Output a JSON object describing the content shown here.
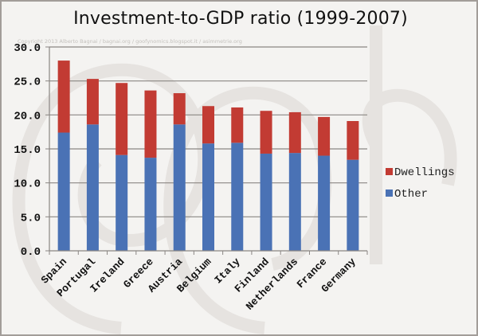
{
  "watermark": "Copyright 2013 Alberto Bagnai / bagnai.org / goofynomics.blogspot.it / asimmetrie.org",
  "colors": {
    "dwellings": "#c23b33",
    "other": "#4a72b5",
    "grid": "#8a8683",
    "axis": "#8a8683"
  },
  "chart_data": {
    "type": "bar",
    "stacked": true,
    "title": "Investment-to-GDP ratio (1999-2007)",
    "xlabel": "",
    "ylabel": "",
    "ylim": [
      0,
      30
    ],
    "yticks": [
      "0.0",
      "5.0",
      "10.0",
      "15.0",
      "20.0",
      "25.0",
      "30.0"
    ],
    "grid": true,
    "legend_position": "right",
    "categories": [
      "Spain",
      "Portugal",
      "Ireland",
      "Greece",
      "Austria",
      "Belgium",
      "Italy",
      "Finland",
      "Netherlands",
      "France",
      "Germany"
    ],
    "series": [
      {
        "name": "Other",
        "values": [
          17.4,
          18.6,
          14.1,
          13.7,
          18.6,
          15.8,
          15.9,
          14.3,
          14.4,
          14.0,
          13.4
        ]
      },
      {
        "name": "Dwellings",
        "values": [
          10.6,
          6.7,
          10.6,
          9.9,
          4.6,
          5.5,
          5.2,
          6.3,
          6.0,
          5.7,
          5.7
        ]
      }
    ],
    "totals": [
      28.0,
      25.3,
      24.7,
      23.6,
      23.2,
      21.3,
      21.1,
      20.6,
      20.4,
      19.7,
      19.1
    ],
    "legend": [
      "Dwellings",
      "Other"
    ]
  }
}
